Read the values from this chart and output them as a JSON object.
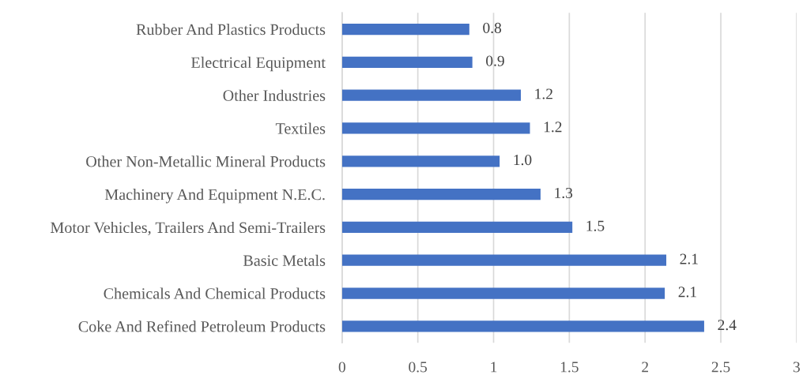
{
  "chart_data": {
    "type": "bar",
    "orientation": "horizontal",
    "categories": [
      "Rubber And Plastics Products",
      "Electrical Equipment",
      "Other Industries",
      "Textiles",
      "Other Non-Metallic Mineral Products",
      "Machinery And Equipment N.E.C.",
      "Motor Vehicles, Trailers And Semi-Trailers",
      "Basic Metals",
      "Chemicals And Chemical Products",
      "Coke And Refined Petroleum Products"
    ],
    "values": [
      0.84,
      0.86,
      1.18,
      1.24,
      1.04,
      1.31,
      1.52,
      2.14,
      2.13,
      2.39
    ],
    "value_labels": [
      "0.8",
      "0.9",
      "1.2",
      "1.2",
      "1.0",
      "1.3",
      "1.5",
      "2.1",
      "2.1",
      "2.4"
    ],
    "color": "#4472c4",
    "xlim": [
      0,
      3
    ],
    "xticks": [
      0,
      0.5,
      1,
      1.5,
      2,
      2.5,
      3
    ],
    "grid": "x"
  }
}
